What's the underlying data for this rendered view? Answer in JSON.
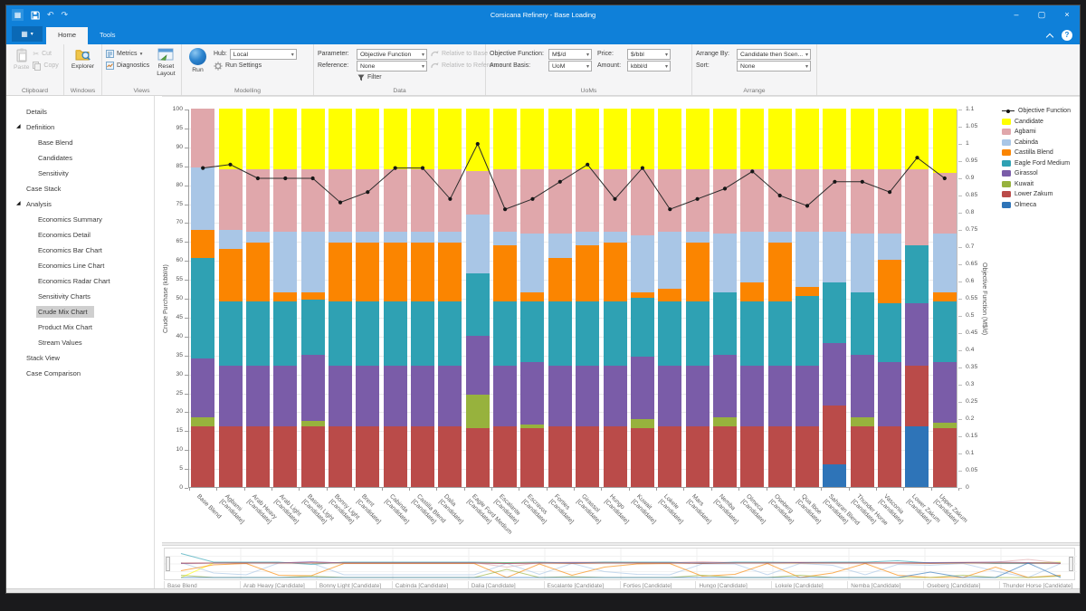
{
  "window": {
    "title": "Corsicana Refinery - Base Loading"
  },
  "icons": {
    "grid": "▦",
    "caret": "▾",
    "undo": "↶",
    "redo": "↷",
    "minimize": "–",
    "maximize": "▢",
    "close": "×",
    "help": "?",
    "cut_glyph": "✂",
    "expander": "◢"
  },
  "tabs": {
    "home": "Home",
    "tools": "Tools"
  },
  "ribbon": {
    "clipboard": {
      "label": "Clipboard",
      "paste": "Paste",
      "cut": "Cut",
      "copy": "Copy"
    },
    "windows": {
      "label": "Windows",
      "explorer": "Explorer"
    },
    "views": {
      "label": "Views",
      "metrics": "Metrics",
      "diagnostics": "Diagnostics",
      "reset_layout": "Reset\nLayout"
    },
    "modelling": {
      "label": "Modelling",
      "run": "Run",
      "hub_label": "Hub:",
      "hub_value": "Local",
      "run_settings": "Run Settings"
    },
    "data": {
      "label": "Data",
      "parameter_label": "Parameter:",
      "parameter_value": "Objective Function",
      "reference_label": "Reference:",
      "reference_value": "None",
      "relative_to_base": "Relative to Base",
      "relative_to_reference": "Relative to Reference",
      "filter": "Filter"
    },
    "uoms": {
      "label": "UoMs",
      "objective_function_label": "Objective Function:",
      "objective_function_value": "M$/d",
      "price_label": "Price:",
      "price_value": "$/bbl",
      "amount_basis_label": "Amount Basis:",
      "amount_basis_value": "UoM",
      "amount_label": "Amount:",
      "amount_value": "kbbl/d"
    },
    "arrange": {
      "label": "Arrange",
      "arrange_by_label": "Arrange By:",
      "arrange_by_value": "Candidate then Scen...",
      "sort_label": "Sort:",
      "sort_value": "None"
    }
  },
  "sidebar": {
    "items": [
      {
        "label": "Details",
        "level": 0
      },
      {
        "label": "Definition",
        "level": 0,
        "expanded": true
      },
      {
        "label": "Base Blend",
        "level": 1
      },
      {
        "label": "Candidates",
        "level": 1
      },
      {
        "label": "Sensitivity",
        "level": 1
      },
      {
        "label": "Case Stack",
        "level": 0
      },
      {
        "label": "Analysis",
        "level": 0,
        "expanded": true
      },
      {
        "label": "Economics Summary",
        "level": 1
      },
      {
        "label": "Economics Detail",
        "level": 1
      },
      {
        "label": "Economics Bar Chart",
        "level": 1
      },
      {
        "label": "Economics Line Chart",
        "level": 1
      },
      {
        "label": "Economics Radar Chart",
        "level": 1
      },
      {
        "label": "Sensitivity Charts",
        "level": 1
      },
      {
        "label": "Crude Mix Chart",
        "level": 1,
        "selected": true
      },
      {
        "label": "Product Mix Chart",
        "level": 1
      },
      {
        "label": "Stream Values",
        "level": 1
      },
      {
        "label": "Stack View",
        "level": 0
      },
      {
        "label": "Case Comparison",
        "level": 0
      }
    ]
  },
  "chart_data": {
    "type": "bar",
    "stacked": true,
    "grid": true,
    "legend_position": "right",
    "ylabel_left": "Crude Purchase (kbbl/d)",
    "ylabel_right": "Objective Function (M$/d)",
    "ylim_left": [
      0,
      100
    ],
    "ytick_step_left": 5,
    "ylim_right": [
      0,
      1.1
    ],
    "ytick_step_right": 0.05,
    "categories": [
      "Base Blend",
      "Agbami [Candidate]",
      "Arab Heavy [Candidate]",
      "Arab Light [Candidate]",
      "Basrah Light [Candidate]",
      "Bonny Light [Candidate]",
      "Brent [Candidate]",
      "Cabinda [Candidate]",
      "Castilla Blend [Candidate]",
      "Dalia [Candidate]",
      "Eagle Ford Medium [Candidate]",
      "Escalante [Candidate]",
      "Escravos [Candidate]",
      "Forties [Candidate]",
      "Girassol [Candidate]",
      "Hungo [Candidate]",
      "Kuwait [Candidate]",
      "Lokele [Candidate]",
      "Mars [Candidate]",
      "Nemba [Candidate]",
      "Olmeca [Candidate]",
      "Oseberg [Candidate]",
      "Qua Iboe [Candidate]",
      "Saharan Blend [Candidate]",
      "Thunder Horse [Candidate]",
      "Vasconia [Candidate]",
      "Lower Zakum [Candidate]",
      "Upper Zakum [Candidate]"
    ],
    "series": [
      {
        "name": "Candidate",
        "color": "#FFFF00",
        "values": [
          0,
          16,
          16,
          16,
          16,
          16,
          16,
          16,
          16,
          16,
          16.5,
          16,
          16,
          16,
          16,
          16,
          16,
          16,
          16,
          16,
          16,
          16,
          16,
          16,
          16,
          16,
          16,
          17
        ]
      },
      {
        "name": "Agbami",
        "color": "#E0A7AB",
        "values": [
          15.5,
          16,
          16.5,
          16.5,
          16.5,
          16.5,
          16.5,
          16.5,
          16.5,
          16.5,
          11.5,
          16.5,
          17,
          17,
          16.5,
          16.5,
          17.5,
          16.5,
          16.5,
          17,
          16.5,
          16.5,
          16.5,
          16.5,
          17,
          17,
          20,
          16
        ]
      },
      {
        "name": "Cabinda",
        "color": "#A9C6E6",
        "values": [
          16.5,
          5,
          3,
          16,
          16,
          3,
          3,
          3,
          3,
          3,
          15.5,
          3.5,
          15.5,
          6.5,
          3.5,
          3,
          15,
          15,
          3,
          15.5,
          13.5,
          3,
          14.5,
          13.5,
          15.5,
          7,
          0,
          15.5
        ]
      },
      {
        "name": "Castilla Blend",
        "color": "#FB8500",
        "values": [
          7.5,
          14,
          15.5,
          2.5,
          2,
          15.5,
          15.5,
          15.5,
          15.5,
          15.5,
          0,
          15,
          2.5,
          11.5,
          15,
          15.5,
          1.5,
          3.5,
          15.5,
          0,
          5,
          15.5,
          2.5,
          0,
          0,
          11.5,
          0,
          2.5
        ]
      },
      {
        "name": "Eagle Ford Medium",
        "color": "#2FA1B3",
        "values": [
          26.5,
          17,
          17,
          17,
          14.5,
          17,
          17,
          17,
          17,
          17,
          16.5,
          17,
          16,
          17,
          17,
          17,
          15.5,
          17,
          17,
          16.5,
          17,
          17,
          18.5,
          16,
          16.5,
          15.5,
          15.5,
          16
        ]
      },
      {
        "name": "Girassol",
        "color": "#7A5CA8",
        "values": [
          15.5,
          16,
          16,
          16,
          17.5,
          16,
          16,
          16,
          16,
          16,
          15.5,
          16,
          16.5,
          16,
          16,
          16,
          16.5,
          16,
          16,
          16.5,
          16,
          16,
          16,
          16.5,
          16.5,
          17,
          16.5,
          16
        ]
      },
      {
        "name": "Kuwait",
        "color": "#97B23D",
        "values": [
          2.5,
          0,
          0,
          0,
          1.5,
          0,
          0,
          0,
          0,
          0,
          9,
          0,
          1,
          0,
          0,
          0,
          2.5,
          0,
          0,
          2.5,
          0,
          0,
          0,
          0,
          2.5,
          0,
          0,
          1.5
        ]
      },
      {
        "name": "Lower Zakum",
        "color": "#BA4B49",
        "values": [
          16,
          16,
          16,
          16,
          16,
          16,
          16,
          16,
          16,
          16,
          15.5,
          16,
          15.5,
          16,
          16,
          16,
          15.5,
          16,
          16,
          16,
          16,
          16,
          16,
          15.5,
          16,
          16,
          16,
          15.5
        ]
      },
      {
        "name": "Olmeca",
        "color": "#2E74B8",
        "values": [
          0,
          0,
          0,
          0,
          0,
          0,
          0,
          0,
          0,
          0,
          0,
          0,
          0,
          0,
          0,
          0,
          0,
          0,
          0,
          0,
          0,
          0,
          0,
          6,
          0,
          0,
          16,
          0
        ]
      }
    ],
    "line_series": {
      "name": "Objective Function",
      "color": "#2b2b2b",
      "axis": "right",
      "values": [
        0.93,
        0.94,
        0.9,
        0.9,
        0.9,
        0.83,
        0.86,
        0.93,
        0.93,
        0.84,
        1.0,
        0.81,
        0.84,
        0.89,
        0.94,
        0.84,
        0.93,
        0.81,
        0.84,
        0.87,
        0.92,
        0.85,
        0.82,
        0.89,
        0.89,
        0.86,
        0.96,
        0.9
      ]
    }
  },
  "mini_chart": {
    "labels": [
      "Base Blend",
      "Arab Heavy [Candidate]",
      "Bonny Light [Candidate]",
      "Cabinda [Candidate]",
      "Dalia [Candidate]",
      "Escalante [Candidate]",
      "Forties [Candidate]",
      "Hungo [Candidate]",
      "Lokele [Candidate]",
      "Nemba [Candidate]",
      "Oseberg [Candidate]",
      "Thunder Horse [Candidate]"
    ]
  }
}
